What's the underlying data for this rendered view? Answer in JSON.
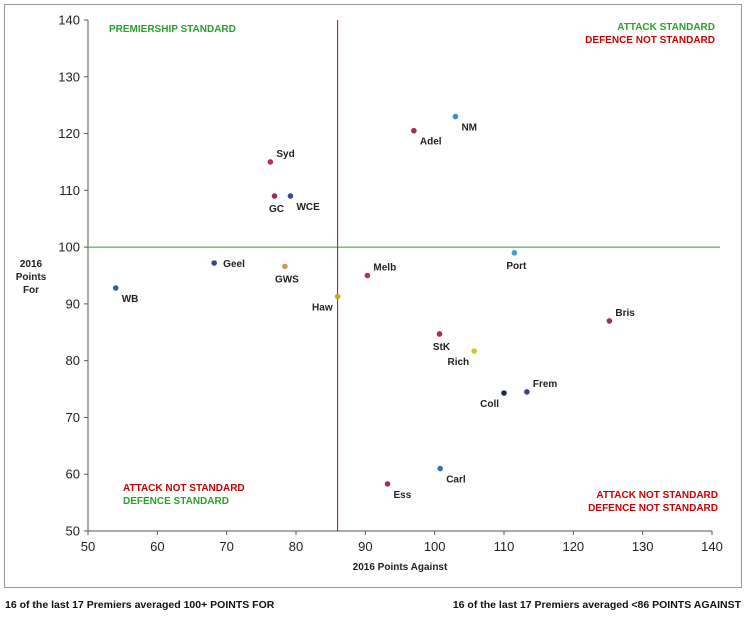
{
  "chart_data": {
    "type": "scatter",
    "xlabel": "2016 Points Against",
    "ylabel_lines": [
      "2016",
      "Points",
      "For"
    ],
    "xlim": [
      50,
      140
    ],
    "ylim": [
      50,
      140
    ],
    "xticks": [
      50,
      60,
      70,
      80,
      90,
      100,
      110,
      120,
      130,
      140
    ],
    "yticks": [
      50,
      60,
      70,
      80,
      90,
      100,
      110,
      120,
      130,
      140
    ],
    "reference_lines": {
      "points_for": 100,
      "points_against": 86,
      "points_for_color": "#2ca02c",
      "points_against_color": "#cc0000"
    },
    "quadrant_labels": {
      "top_left": [
        {
          "text": "PREMIERSHIP STANDARD",
          "color": "#2ca02c"
        }
      ],
      "top_right": [
        {
          "text": "ATTACK STANDARD",
          "color": "#2ca02c"
        },
        {
          "text": "DEFENCE NOT STANDARD",
          "color": "#cc0000"
        }
      ],
      "bottom_left": [
        {
          "text": "ATTACK NOT STANDARD",
          "color": "#cc0000"
        },
        {
          "text": "DEFENCE STANDARD",
          "color": "#2ca02c"
        }
      ],
      "bottom_right": [
        {
          "text": "ATTACK NOT STANDARD",
          "color": "#cc0000"
        },
        {
          "text": "DEFENCE NOT STANDARD",
          "color": "#cc0000"
        }
      ]
    },
    "points": [
      {
        "team": "NM",
        "x": 103.0,
        "y": 123.0,
        "color": "#3a8fc7",
        "label_pos": "below-right"
      },
      {
        "team": "Adel",
        "x": 97.0,
        "y": 120.5,
        "color": "#a0304a",
        "label_pos": "below-right"
      },
      {
        "team": "Syd",
        "x": 76.3,
        "y": 115.0,
        "color": "#b83050",
        "label_pos": "above-right"
      },
      {
        "team": "GC",
        "x": 76.9,
        "y": 109.0,
        "color": "#a0304a",
        "label_pos": "below"
      },
      {
        "team": "WCE",
        "x": 79.2,
        "y": 109.0,
        "color": "#2a4f8f",
        "label_pos": "below-right"
      },
      {
        "team": "Port",
        "x": 111.5,
        "y": 99.0,
        "color": "#3aa0c0",
        "label_pos": "below"
      },
      {
        "team": "Geel",
        "x": 68.2,
        "y": 97.2,
        "color": "#2a4f8f",
        "label_pos": "right"
      },
      {
        "team": "GWS",
        "x": 78.4,
        "y": 96.6,
        "color": "#c4a060",
        "label_pos": "below"
      },
      {
        "team": "Melb",
        "x": 90.3,
        "y": 95.0,
        "color": "#b83050",
        "label_pos": "above-right"
      },
      {
        "team": "WB",
        "x": 54.0,
        "y": 92.8,
        "color": "#2a5fa8",
        "label_pos": "below-right"
      },
      {
        "team": "Haw",
        "x": 86.0,
        "y": 91.3,
        "color": "#d4a030",
        "label_pos": "below-left"
      },
      {
        "team": "Bris",
        "x": 125.2,
        "y": 87.0,
        "color": "#a0304a",
        "label_pos": "above-right"
      },
      {
        "team": "StK",
        "x": 100.7,
        "y": 84.7,
        "color": "#a0304a",
        "label_pos": "below"
      },
      {
        "team": "Rich",
        "x": 105.7,
        "y": 81.7,
        "color": "#d4c030",
        "label_pos": "below-left"
      },
      {
        "team": "Frem",
        "x": 113.3,
        "y": 74.5,
        "color": "#4a3a8a",
        "label_pos": "above-right"
      },
      {
        "team": "Coll",
        "x": 110.0,
        "y": 74.3,
        "color": "#1a2a50",
        "label_pos": "below-left"
      },
      {
        "team": "Carl",
        "x": 100.8,
        "y": 61.0,
        "color": "#3a6fb0",
        "label_pos": "below-right"
      },
      {
        "team": "Ess",
        "x": 93.2,
        "y": 58.3,
        "color": "#a0304a",
        "label_pos": "below-right"
      }
    ]
  },
  "footer": {
    "left": "16 of the last 17 Premiers averaged 100+ POINTS FOR",
    "right": "16 of the last 17 Premiers averaged <86 POINTS AGAINST"
  }
}
